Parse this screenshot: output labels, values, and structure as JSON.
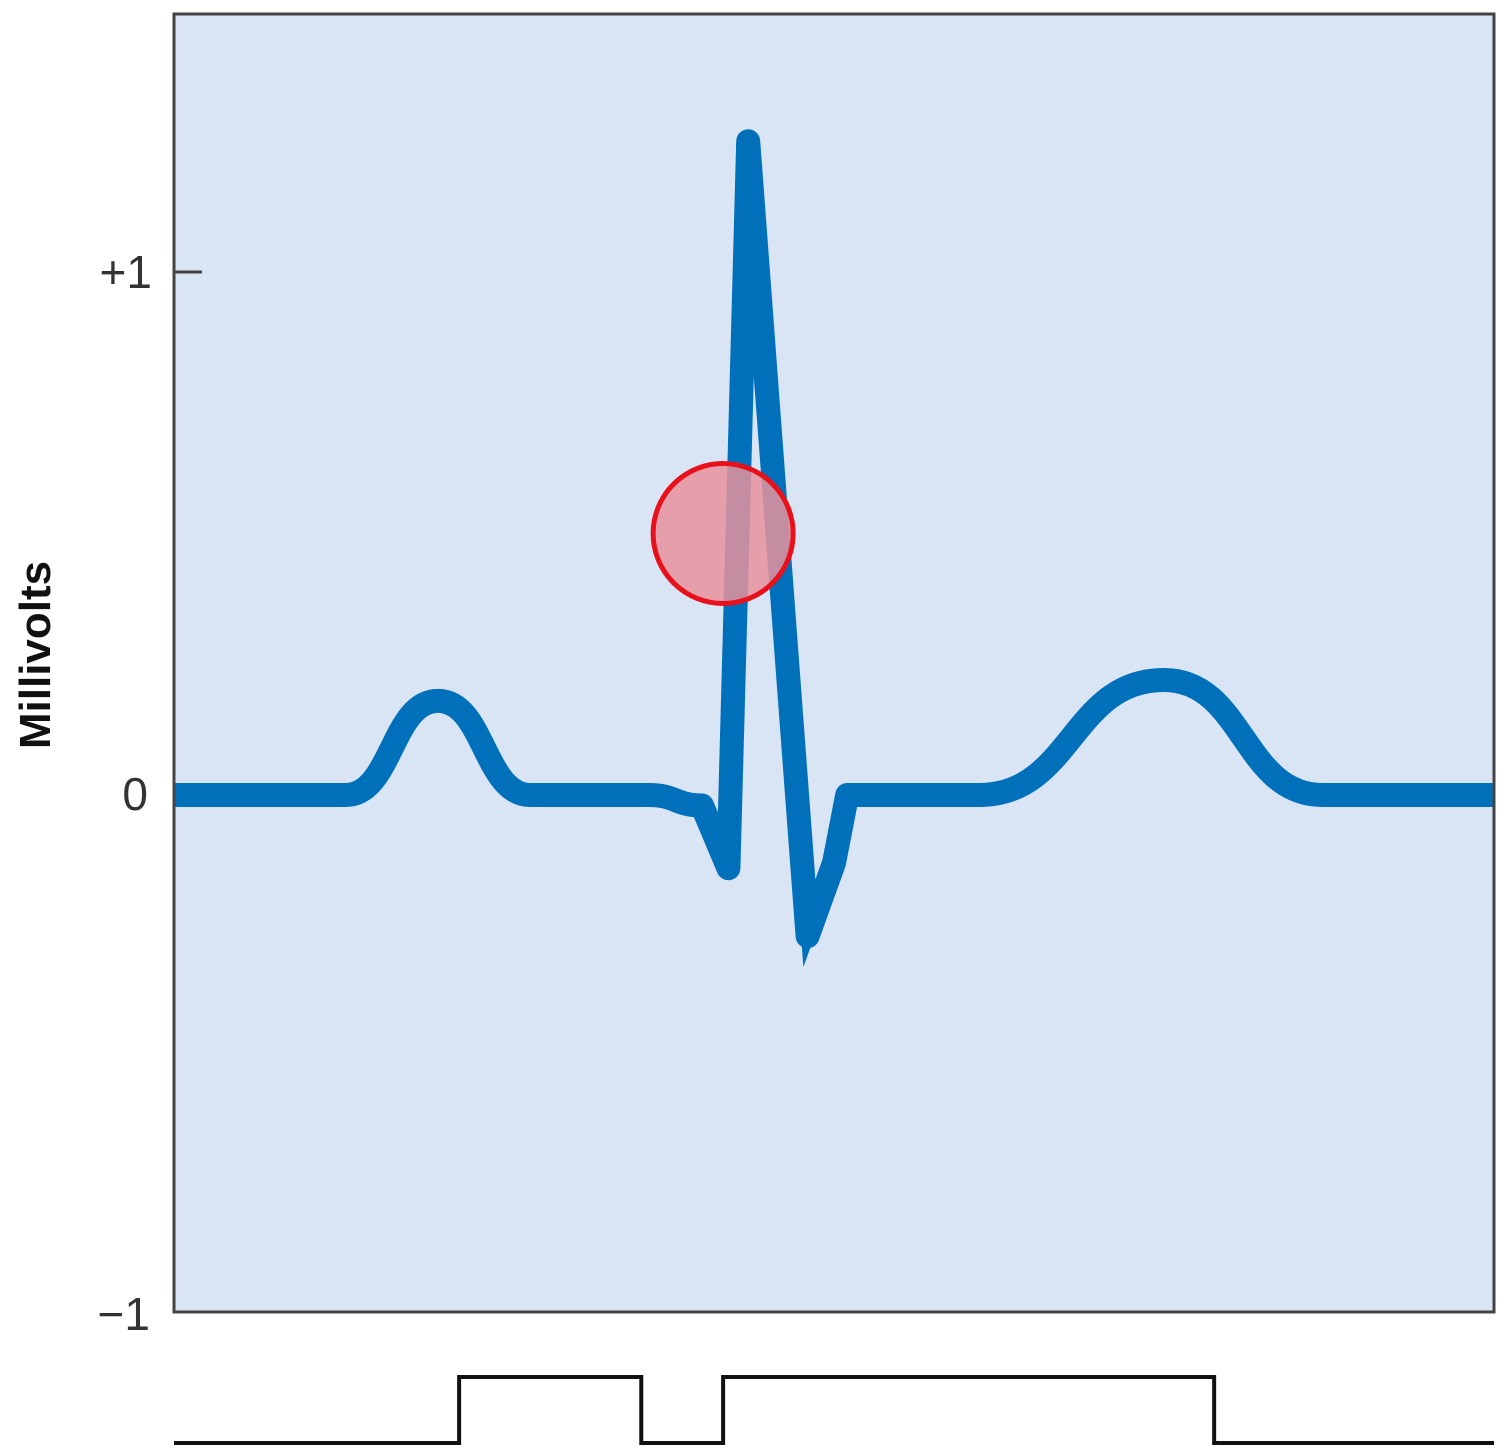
{
  "axis": {
    "ylabel": "Millivolts",
    "ticks": [
      "+1",
      "0",
      "−1"
    ]
  },
  "colors": {
    "plot_background": "#d9e5f5",
    "frame": "#444444",
    "trace": "#0070bb",
    "marker_fill": "#e8929c",
    "marker_stroke": "#e8101a",
    "pulse_line": "#111111"
  },
  "chart_data": {
    "type": "line",
    "ylabel": "Millivolts",
    "ylim": [
      -1,
      1.25
    ],
    "y_ticks": [
      1,
      0,
      -1
    ],
    "series": [
      {
        "waveform": "ecg",
        "x": [
          0,
          0.13,
          0.2,
          0.27,
          0.36,
          0.4,
          0.42,
          0.435,
          0.48,
          0.5,
          0.51,
          0.55,
          0.61,
          0.75,
          0.87,
          0.96,
          1.0
        ],
        "y": [
          0,
          0,
          0.18,
          0,
          0,
          -0.02,
          -0.14,
          1.25,
          -0.27,
          -0.13,
          0,
          0,
          0,
          0.22,
          0,
          0,
          0
        ]
      }
    ],
    "highlight": {
      "x": 0.416,
      "y": 0.5,
      "shape": "circle"
    },
    "timing_bar": {
      "x": [
        0,
        0.216,
        0.216,
        0.354,
        0.354,
        0.416,
        0.416,
        0.788,
        0.788,
        1.0
      ],
      "level": [
        0,
        0,
        1,
        1,
        0,
        0,
        1,
        1,
        0,
        0
      ]
    }
  }
}
